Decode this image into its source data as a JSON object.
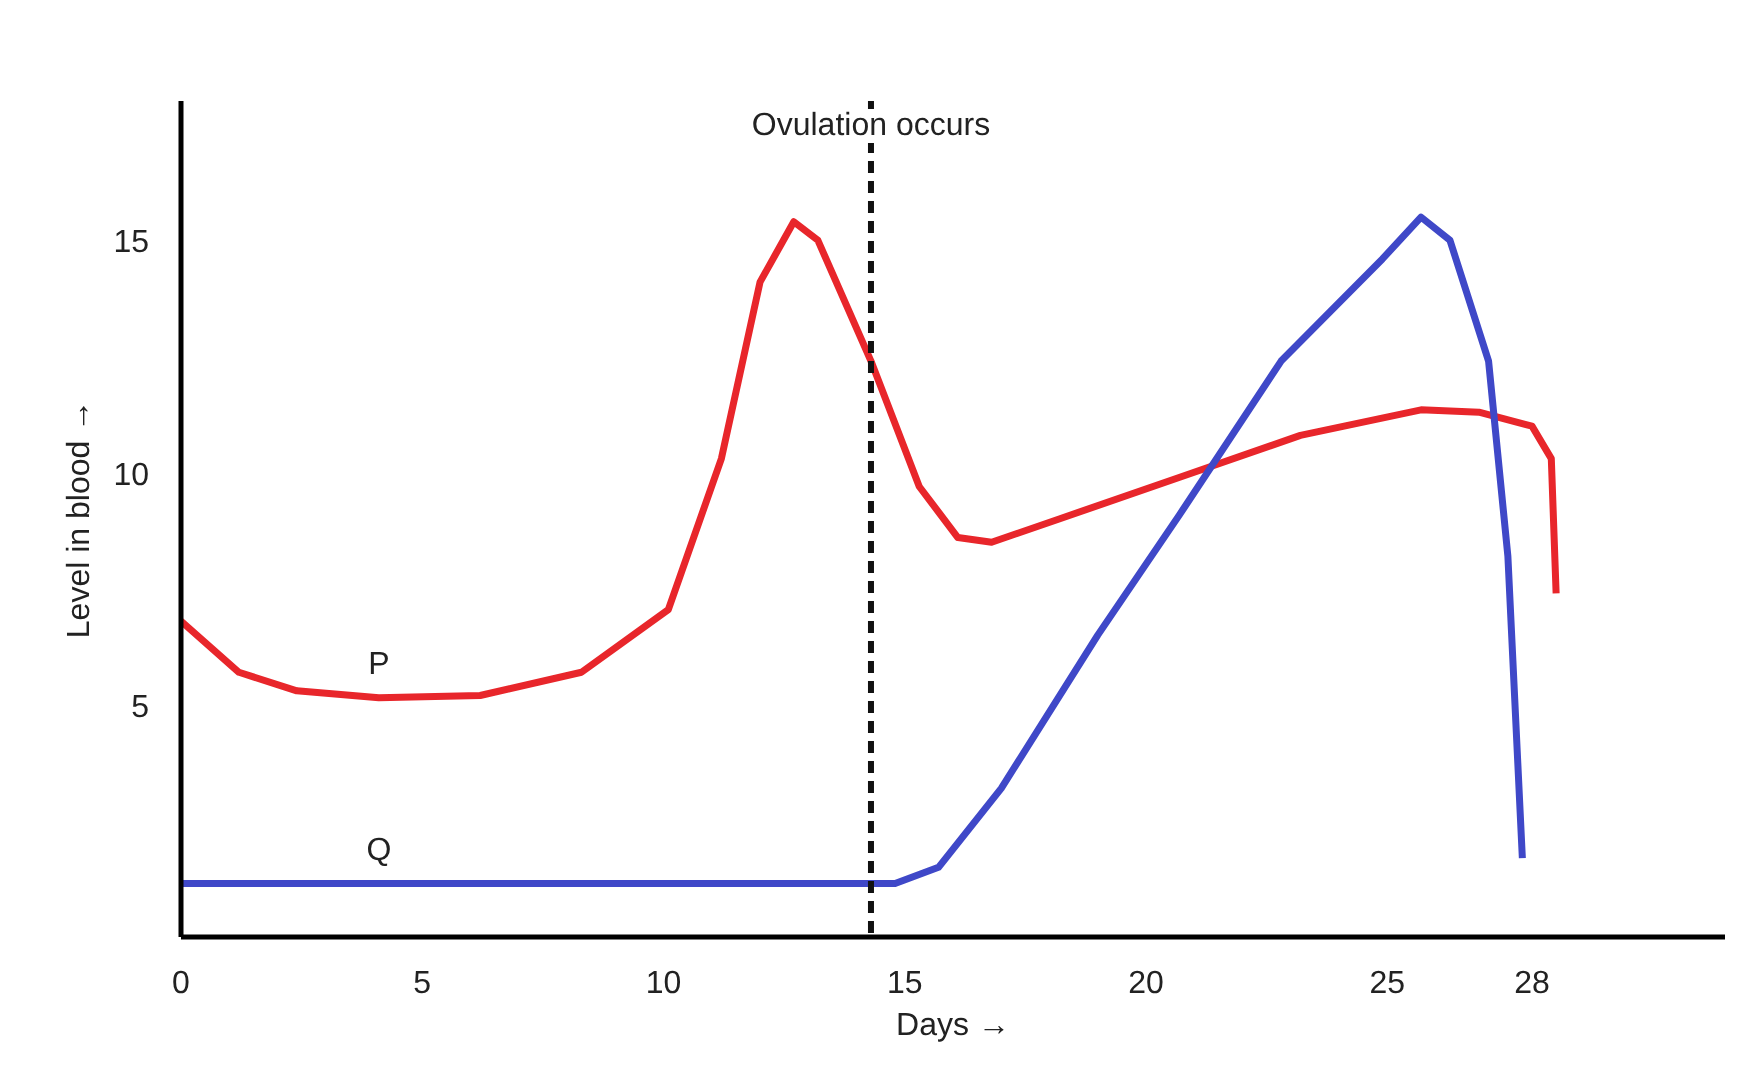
{
  "chart_data": {
    "type": "line",
    "xlabel": "Days →",
    "ylabel": "Level in blood →",
    "xlim": [
      0,
      32
    ],
    "ylim": [
      0,
      18
    ],
    "xticks": [
      0,
      5,
      10,
      15,
      20,
      25,
      28
    ],
    "yticks": [
      5,
      10,
      15
    ],
    "grid": false,
    "legend": false,
    "marker": "none",
    "line_style": "solid",
    "series": [
      {
        "name": "P",
        "color": "#e8262b",
        "x": [
          0,
          1.2,
          2.4,
          4.1,
          6.2,
          8.3,
          10.1,
          11.2,
          12,
          12.7,
          13.2,
          14.3,
          15.3,
          16.1,
          16.8,
          18.2,
          20.7,
          23.2,
          25.7,
          26.9,
          28,
          28.4,
          28.5
        ],
        "values": [
          6.8,
          5.7,
          5.3,
          5.15,
          5.2,
          5.7,
          7.05,
          10.3,
          14.1,
          15.4,
          15.0,
          12.4,
          9.7,
          8.6,
          8.5,
          9.0,
          9.9,
          10.8,
          11.35,
          11.3,
          11.0,
          10.3,
          7.4
        ]
      },
      {
        "name": "Q",
        "color": "#3f48c8",
        "x": [
          0,
          1.2,
          2.4,
          4.1,
          10,
          14.8,
          15.7,
          17,
          19,
          20.7,
          22.8,
          24.9,
          25.7,
          26.3,
          27.1,
          27.5,
          27.8
        ],
        "values": [
          1.15,
          1.15,
          1.15,
          1.15,
          1.15,
          1.15,
          1.5,
          3.2,
          6.5,
          9.1,
          12.4,
          14.6,
          15.5,
          15.0,
          12.4,
          8.2,
          1.7
        ]
      }
    ],
    "ref_lines": [
      {
        "axis": "x",
        "value": 14.3,
        "label": "Ovulation occurs",
        "color": "#111111",
        "line_style": "dashed"
      }
    ]
  }
}
